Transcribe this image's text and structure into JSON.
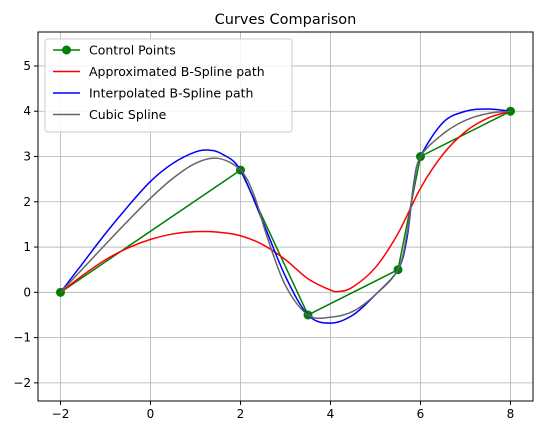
{
  "chart_data": {
    "type": "line",
    "title": "Curves Comparison",
    "xlabel": "",
    "ylabel": "",
    "xlim": [
      -2.5,
      8.5
    ],
    "ylim": [
      -2.4,
      5.75
    ],
    "xticks": [
      -2,
      0,
      2,
      4,
      6,
      8
    ],
    "yticks": [
      -2,
      -1,
      0,
      1,
      2,
      3,
      4,
      5
    ],
    "grid": true,
    "legend_position": "top-left",
    "series": [
      {
        "name": "Control Points",
        "color": "#008000",
        "marker": "circle",
        "x": [
          -2,
          2,
          3.5,
          5.5,
          6,
          8
        ],
        "y": [
          0,
          2.7,
          -0.5,
          0.5,
          3,
          4
        ]
      },
      {
        "name": "Approximated B-Spline path",
        "color": "#ff0000",
        "x": [
          -2,
          -1.5,
          -1,
          -0.5,
          0,
          0.5,
          1,
          1.5,
          2,
          2.5,
          3,
          3.5,
          4,
          4.2,
          4.5,
          5,
          5.5,
          6,
          6.5,
          7,
          7.5,
          8
        ],
        "y": [
          0,
          0.38,
          0.72,
          0.98,
          1.17,
          1.29,
          1.34,
          1.33,
          1.25,
          1.05,
          0.72,
          0.3,
          0.05,
          0.02,
          0.12,
          0.55,
          1.3,
          2.3,
          3.05,
          3.55,
          3.85,
          4.0
        ]
      },
      {
        "name": "Interpolated B-Spline path",
        "color": "#0000ff",
        "x": [
          -2,
          -1.5,
          -1,
          -0.5,
          0,
          0.5,
          1,
          1.3,
          1.6,
          2,
          2.5,
          3,
          3.5,
          4,
          4.5,
          5,
          5.5,
          5.7,
          5.85,
          6,
          6.5,
          7,
          7.5,
          8
        ],
        "y": [
          0,
          0.65,
          1.3,
          1.9,
          2.45,
          2.85,
          3.1,
          3.14,
          3.05,
          2.7,
          1.55,
          0.35,
          -0.5,
          -0.68,
          -0.5,
          -0.05,
          0.5,
          1.2,
          2.4,
          3.0,
          3.75,
          4.0,
          4.05,
          4.0
        ]
      },
      {
        "name": "Cubic Spline",
        "color": "#666666",
        "x": [
          -2,
          -1.5,
          -1,
          -0.5,
          0,
          0.5,
          1,
          1.5,
          2,
          2.3,
          2.6,
          3,
          3.5,
          4,
          4.5,
          5,
          5.5,
          5.7,
          5.85,
          6,
          6.5,
          7,
          7.5,
          8
        ],
        "y": [
          0,
          0.53,
          1.06,
          1.58,
          2.08,
          2.52,
          2.85,
          2.96,
          2.7,
          2.15,
          1.2,
          0.15,
          -0.5,
          -0.55,
          -0.42,
          -0.05,
          0.5,
          1.3,
          2.35,
          3.0,
          3.5,
          3.8,
          3.95,
          4.0
        ]
      }
    ]
  }
}
